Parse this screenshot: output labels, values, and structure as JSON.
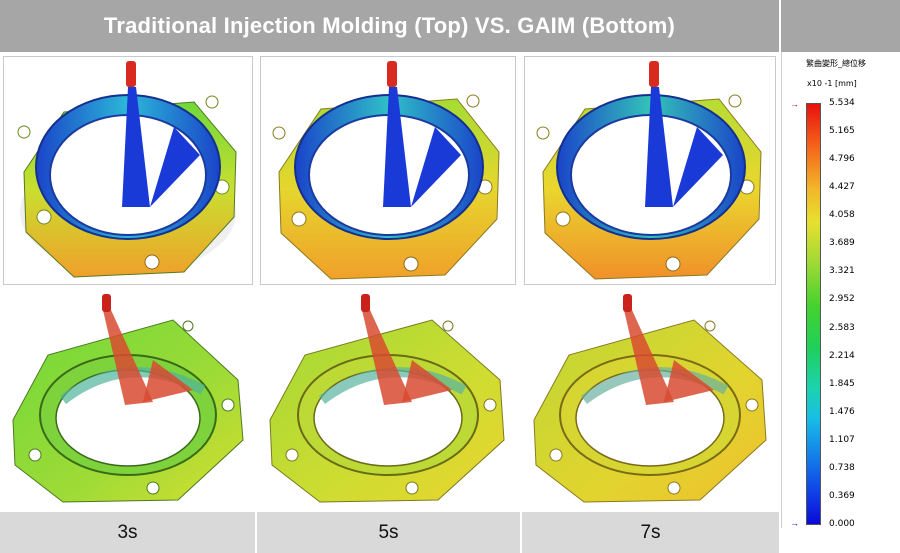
{
  "header": {
    "title": "Traditional Injection Molding (Top) VS. GAIM (Bottom)"
  },
  "columns": [
    {
      "label": "3s"
    },
    {
      "label": "5s"
    },
    {
      "label": "7s"
    }
  ],
  "scale": {
    "title": "繁曲變形_總位移",
    "unit": "x10 -1  [mm]",
    "ticks": [
      "5.534",
      "5.165",
      "4.796",
      "4.427",
      "4.058",
      "3.689",
      "3.321",
      "2.952",
      "2.583",
      "2.214",
      "1.845",
      "1.476",
      "1.107",
      "0.738",
      "0.369",
      "0.000"
    ],
    "max_marker": "→",
    "min_marker": "→"
  },
  "colors": {
    "header_bg": "#a6a6a6",
    "footer_bg": "#d9d9d9",
    "ring_blue": "#1f47c8",
    "gate_red": "#d62a1e"
  }
}
